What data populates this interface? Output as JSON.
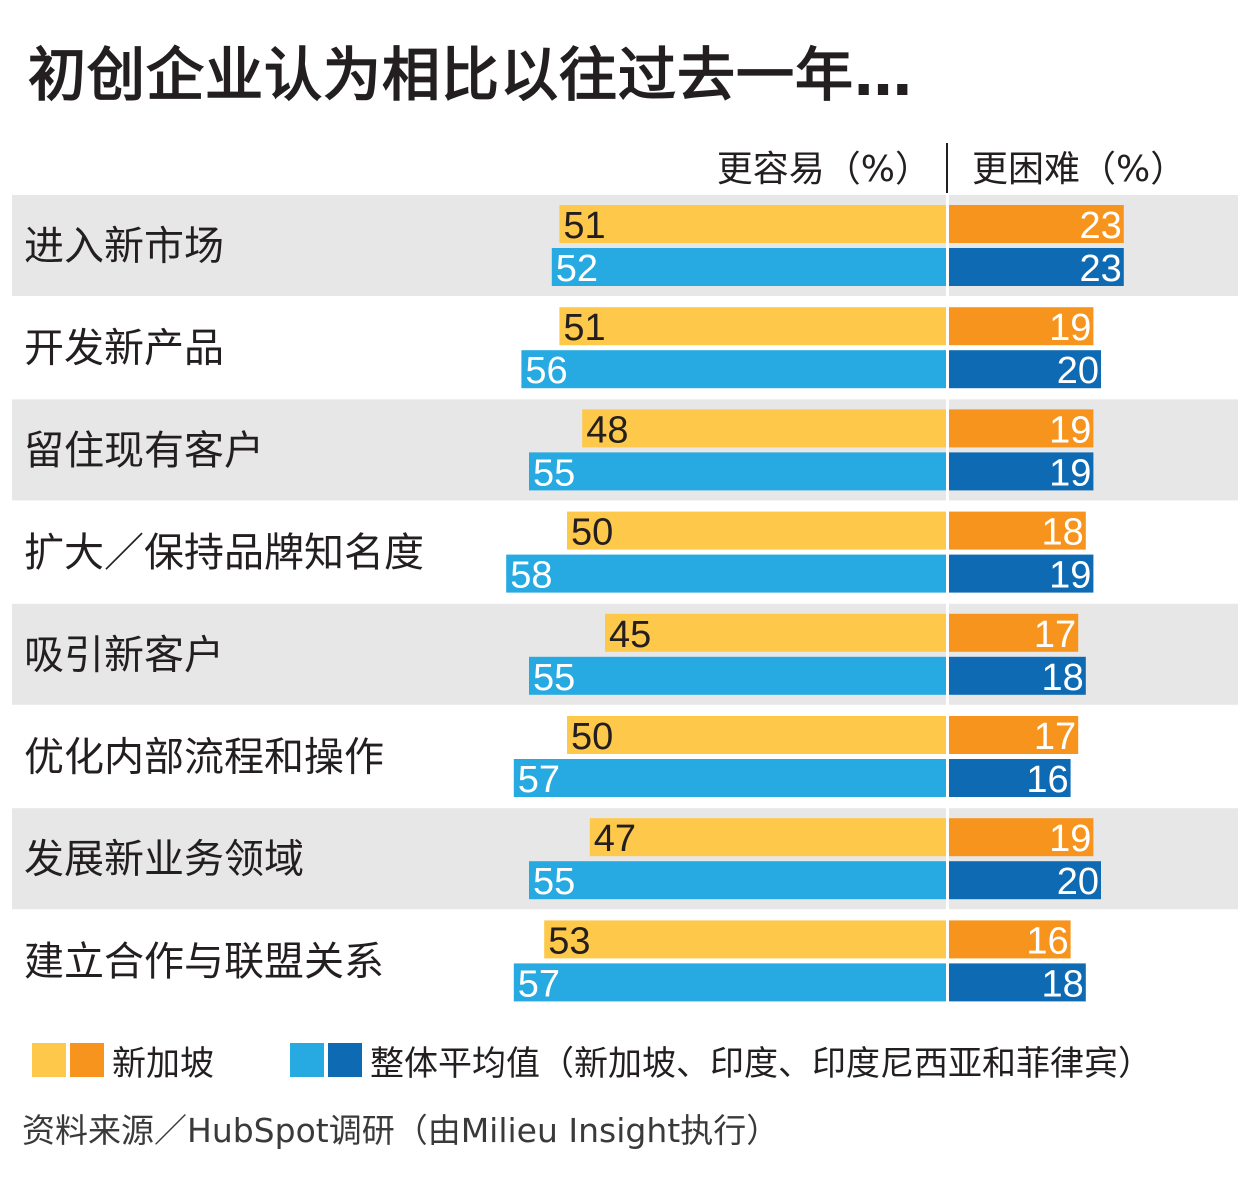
{
  "title": "初创企业认为相比以往过去一年…",
  "headers": {
    "easier": "更容易（%）",
    "harder": "更困难（%）"
  },
  "colors": {
    "sg_easier": "#fec84a",
    "sg_harder": "#f7941d",
    "avg_easier": "#27aae1",
    "avg_harder": "#0f6ab4",
    "row_band": "#e7e7e8",
    "text": "#231f20"
  },
  "chart_data": {
    "type": "bar",
    "orientation": "horizontal-diverging",
    "unit": "%",
    "categories": [
      "进入新市场",
      "开发新产品",
      "留住现有客户",
      "扩大／保持品牌知名度",
      "吸引新客户",
      "优化内部流程和操作",
      "发展新业务领域",
      "建立合作与联盟关系"
    ],
    "series": [
      {
        "name": "新加坡",
        "side": "更容易",
        "values": [
          51,
          51,
          48,
          50,
          45,
          50,
          47,
          53
        ]
      },
      {
        "name": "新加坡",
        "side": "更困难",
        "values": [
          23,
          19,
          19,
          18,
          17,
          17,
          19,
          16
        ]
      },
      {
        "name": "整体平均值（新加坡、印度、印度尼西亚和菲律宾）",
        "side": "更容易",
        "values": [
          52,
          56,
          55,
          58,
          55,
          57,
          55,
          57
        ]
      },
      {
        "name": "整体平均值（新加坡、印度、印度尼西亚和菲律宾）",
        "side": "更困难",
        "values": [
          23,
          20,
          19,
          19,
          18,
          16,
          20,
          18
        ]
      }
    ]
  },
  "legend": {
    "singapore": "新加坡",
    "average": "整体平均值（新加坡、印度、印度尼西亚和菲律宾）"
  },
  "source": "资料来源／HubSpot调研（由Milieu Insight执行）"
}
